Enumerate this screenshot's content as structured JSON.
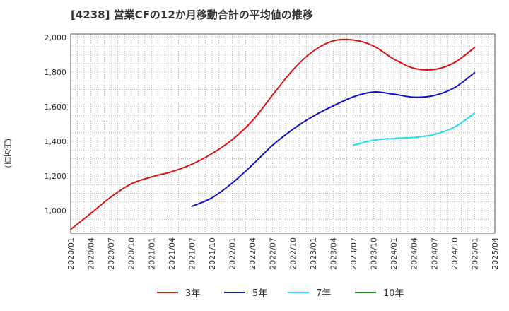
{
  "title": "[4238]  営業CFの12か月移動合計の平均値の推移",
  "y_unit_label": "(百万円)",
  "chart_data": {
    "type": "line",
    "title": "[4238]  営業CFの12か月移動合計の平均値の推移",
    "ylabel": "(百万円)",
    "xlabel": "",
    "ylim": [
      870,
      2020
    ],
    "xlim": [
      "2020-01",
      "2025-04"
    ],
    "yticks": [
      1000,
      1200,
      1400,
      1600,
      1800,
      2000
    ],
    "ytick_labels": [
      "1,000",
      "1,200",
      "1,400",
      "1,600",
      "1,800",
      "2,000"
    ],
    "xtick_labels": [
      "2020/01",
      "2020/04",
      "2020/07",
      "2020/10",
      "2021/01",
      "2021/04",
      "2021/07",
      "2021/10",
      "2022/01",
      "2022/04",
      "2022/07",
      "2022/10",
      "2023/01",
      "2023/04",
      "2023/07",
      "2023/10",
      "2024/01",
      "2024/04",
      "2024/07",
      "2024/10",
      "2025/01",
      "2025/04"
    ],
    "grid": true,
    "legend_position": "bottom",
    "series": [
      {
        "name": "3年",
        "color": "#dd1111",
        "points": [
          [
            "2020/01",
            892
          ],
          [
            "2020/04",
            985
          ],
          [
            "2020/07",
            1080
          ],
          [
            "2020/10",
            1155
          ],
          [
            "2021/01",
            1195
          ],
          [
            "2021/04",
            1225
          ],
          [
            "2021/07",
            1268
          ],
          [
            "2021/10",
            1330
          ],
          [
            "2022/01",
            1410
          ],
          [
            "2022/04",
            1520
          ],
          [
            "2022/07",
            1668
          ],
          [
            "2022/10",
            1812
          ],
          [
            "2023/01",
            1920
          ],
          [
            "2023/04",
            1980
          ],
          [
            "2023/07",
            1985
          ],
          [
            "2023/10",
            1950
          ],
          [
            "2024/01",
            1875
          ],
          [
            "2024/04",
            1822
          ],
          [
            "2024/07",
            1815
          ],
          [
            "2024/10",
            1855
          ],
          [
            "2025/01",
            1942
          ]
        ]
      },
      {
        "name": "5年",
        "color": "#1111cc",
        "points": [
          [
            "2021/07",
            1025
          ],
          [
            "2021/10",
            1075
          ],
          [
            "2022/01",
            1160
          ],
          [
            "2022/04",
            1265
          ],
          [
            "2022/07",
            1378
          ],
          [
            "2022/10",
            1470
          ],
          [
            "2023/01",
            1545
          ],
          [
            "2023/04",
            1605
          ],
          [
            "2023/07",
            1657
          ],
          [
            "2023/10",
            1685
          ],
          [
            "2024/01",
            1672
          ],
          [
            "2024/04",
            1655
          ],
          [
            "2024/07",
            1665
          ],
          [
            "2024/10",
            1710
          ],
          [
            "2025/01",
            1797
          ]
        ]
      },
      {
        "name": "7年",
        "color": "#22ddee",
        "points": [
          [
            "2023/07",
            1378
          ],
          [
            "2023/10",
            1407
          ],
          [
            "2024/01",
            1417
          ],
          [
            "2024/04",
            1423
          ],
          [
            "2024/07",
            1440
          ],
          [
            "2024/10",
            1483
          ],
          [
            "2025/01",
            1563
          ]
        ]
      },
      {
        "name": "10年",
        "color": "#228822",
        "points": []
      }
    ]
  }
}
